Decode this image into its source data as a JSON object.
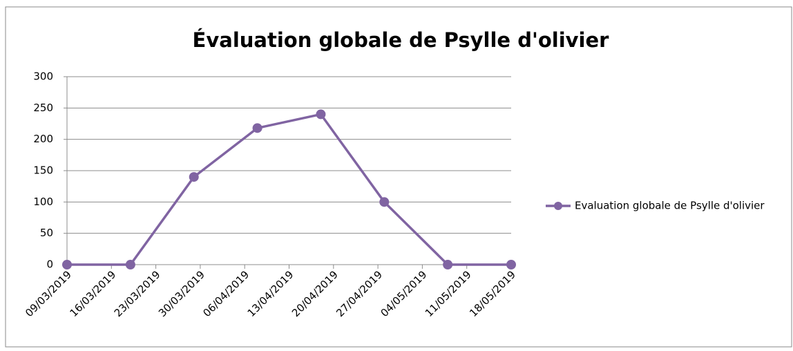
{
  "chart_data": {
    "type": "line",
    "title": "Évaluation globale de Psylle d'olivier",
    "x": [
      "09/03/2019",
      "19/03/2019",
      "29/03/2019",
      "08/04/2019",
      "18/04/2019",
      "28/04/2019",
      "08/05/2019",
      "18/05/2019"
    ],
    "series": [
      {
        "name": "Evaluation globale de Psylle d'olivier",
        "color": "#8064a2",
        "values": [
          0,
          0,
          140,
          218,
          240,
          100,
          0,
          0
        ]
      }
    ],
    "xlim": [
      "09/03/2019",
      "18/05/2019"
    ],
    "xticks": [
      "09/03/2019",
      "16/03/2019",
      "23/03/2019",
      "30/03/2019",
      "06/04/2019",
      "13/04/2019",
      "20/04/2019",
      "27/04/2019",
      "04/05/2019",
      "11/05/2019",
      "18/05/2019"
    ],
    "ylim": [
      0,
      300
    ],
    "yticks": [
      0,
      50,
      100,
      150,
      200,
      250,
      300
    ],
    "grid": true,
    "legend": "right"
  }
}
